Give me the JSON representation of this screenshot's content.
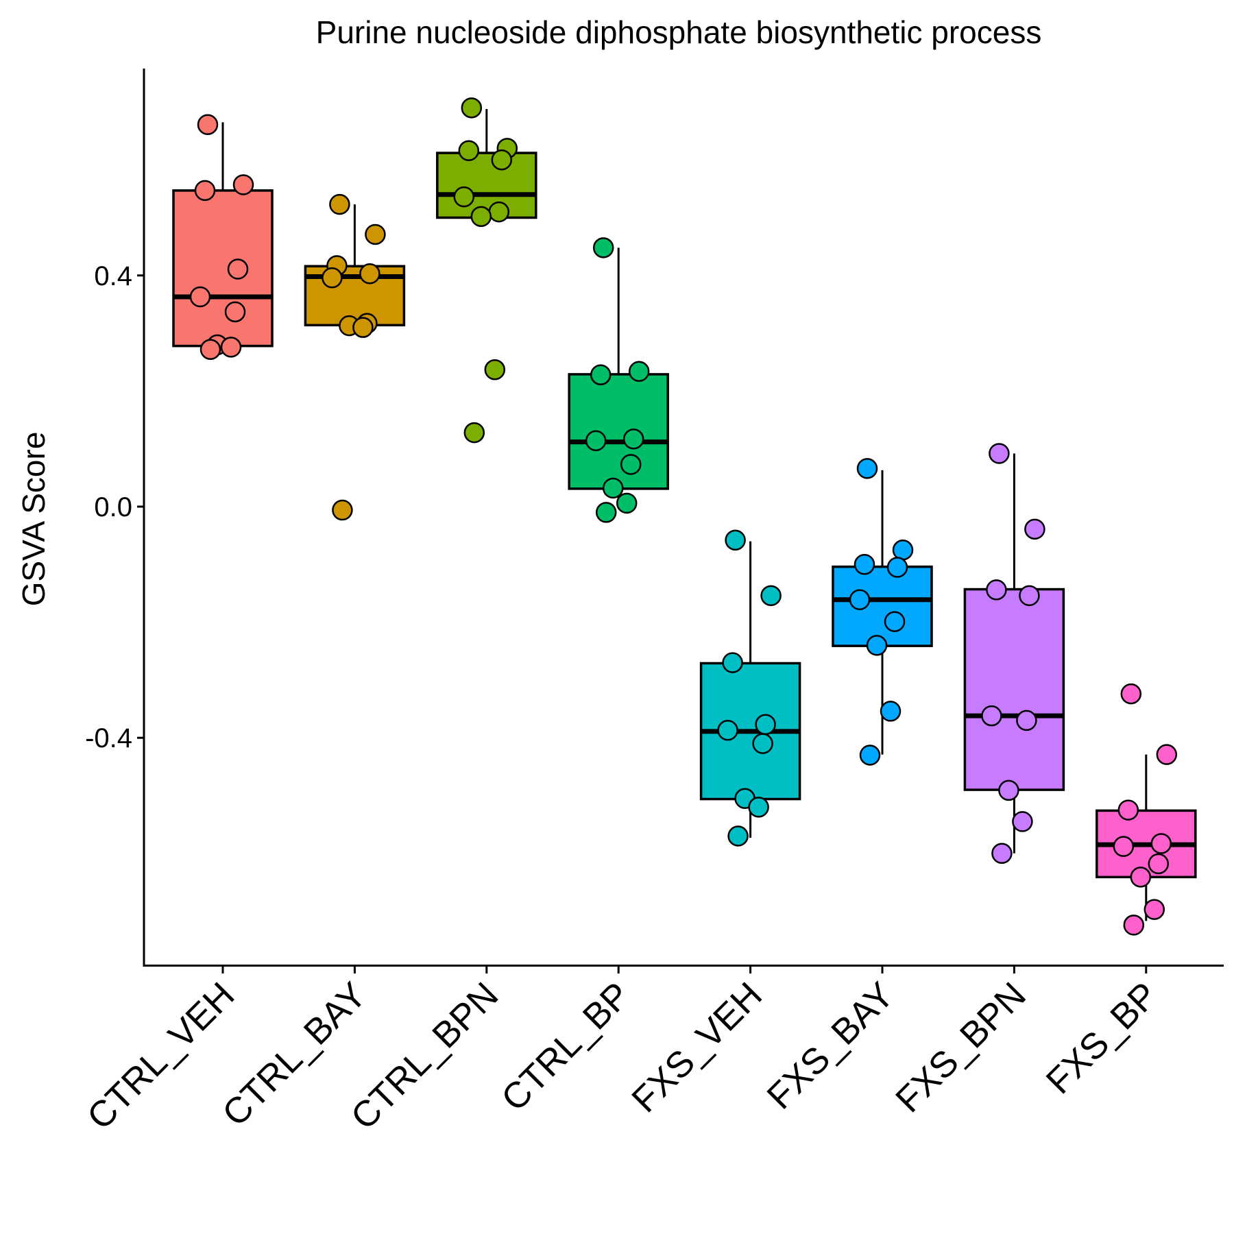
{
  "chart_data": {
    "type": "box",
    "title": "Purine nucleoside diphosphate biosynthetic process",
    "xlabel": "",
    "ylabel": "GSVA Score",
    "ylim": [
      -0.79,
      0.76
    ],
    "yticks": [
      -0.4,
      0.0,
      0.4
    ],
    "ytick_labels": [
      "-0.4",
      "0.0",
      "0.4"
    ],
    "grid": false,
    "legend": "none",
    "categories": [
      "CTRL_VEH",
      "CTRL_BAY",
      "CTRL_BPN",
      "CTRL_BP",
      "FXS_VEH",
      "FXS_BAY",
      "FXS_BPN",
      "FXS_BP"
    ],
    "series": [
      {
        "color": "#F8766D",
        "box": {
          "q1": 0.278,
          "median": 0.363,
          "q3": 0.547,
          "whisker_low": 0.278,
          "whisker_high": 0.665
        },
        "points": [
          0.661,
          0.557,
          0.547,
          0.411,
          0.363,
          0.337,
          0.28,
          0.276,
          0.272
        ]
      },
      {
        "color": "#CD9600",
        "box": {
          "q1": 0.314,
          "median": 0.398,
          "q3": 0.416,
          "whisker_low": 0.314,
          "whisker_high": 0.523
        },
        "points": [
          0.523,
          0.471,
          0.417,
          0.403,
          0.396,
          0.317,
          0.313,
          0.31,
          -0.006
        ]
      },
      {
        "color": "#7CAE00",
        "box": {
          "q1": 0.5,
          "median": 0.54,
          "q3": 0.612,
          "whisker_low": 0.5,
          "whisker_high": 0.688
        },
        "points": [
          0.69,
          0.62,
          0.616,
          0.6,
          0.536,
          0.51,
          0.502,
          0.237,
          0.128
        ]
      },
      {
        "color": "#00BE67",
        "box": {
          "q1": 0.031,
          "median": 0.112,
          "q3": 0.229,
          "whisker_low": 0.0,
          "whisker_high": 0.448
        },
        "points": [
          0.448,
          0.234,
          0.228,
          0.117,
          0.114,
          0.073,
          0.032,
          0.006,
          -0.01
        ]
      },
      {
        "color": "#00BFC4",
        "box": {
          "q1": -0.506,
          "median": -0.389,
          "q3": -0.271,
          "whisker_low": -0.573,
          "whisker_high": -0.06
        },
        "points": [
          -0.058,
          -0.154,
          -0.27,
          -0.377,
          -0.387,
          -0.41,
          -0.505,
          -0.52,
          -0.57
        ]
      },
      {
        "color": "#00A9FF",
        "box": {
          "q1": -0.241,
          "median": -0.161,
          "q3": -0.104,
          "whisker_low": -0.429,
          "whisker_high": 0.063
        },
        "points": [
          0.066,
          -0.075,
          -0.1,
          -0.105,
          -0.161,
          -0.199,
          -0.24,
          -0.354,
          -0.43
        ]
      },
      {
        "color": "#C77CFF",
        "box": {
          "q1": -0.49,
          "median": -0.362,
          "q3": -0.143,
          "whisker_low": -0.6,
          "whisker_high": 0.092
        },
        "points": [
          0.092,
          -0.039,
          -0.144,
          -0.154,
          -0.362,
          -0.37,
          -0.491,
          -0.545,
          -0.6
        ]
      },
      {
        "color": "#FF61CC",
        "box": {
          "q1": -0.641,
          "median": -0.585,
          "q3": -0.526,
          "whisker_low": -0.717,
          "whisker_high": -0.429
        },
        "points": [
          -0.324,
          -0.429,
          -0.525,
          -0.583,
          -0.588,
          -0.618,
          -0.641,
          -0.697,
          -0.724
        ]
      }
    ]
  }
}
